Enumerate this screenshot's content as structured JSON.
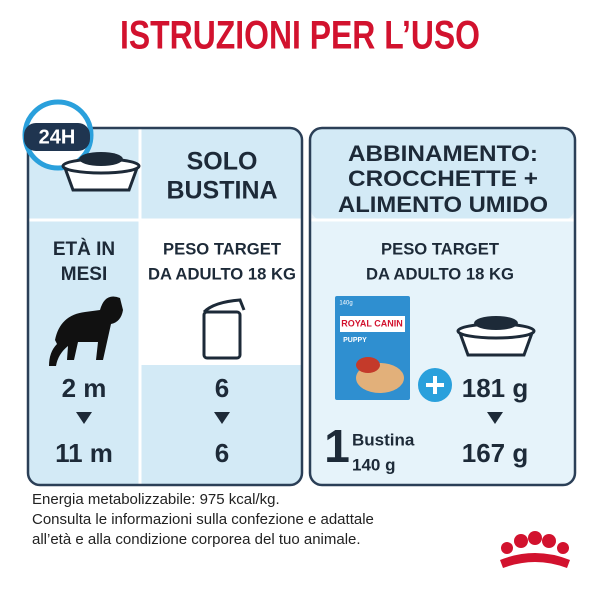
{
  "title": "ISTRUZIONI PER L’USO",
  "badge": "24H",
  "left_panel": {
    "header": [
      "SOLO",
      "BUSTINA"
    ],
    "age_header": [
      "ETÀ IN",
      "MESI"
    ],
    "weight_header": [
      "PESO TARGET",
      "DA ADULTO 18 KG"
    ],
    "rows": [
      [
        "2 m",
        "6"
      ],
      [
        "11 m",
        "6"
      ]
    ]
  },
  "right_panel": {
    "header": [
      "ABBINAMENTO:",
      "CROCCHETTE +",
      "ALIMENTO UMIDO"
    ],
    "weight_header": [
      "PESO TARGET",
      "DA ADULTO 18 KG"
    ],
    "pouch": {
      "size": "140g",
      "brand": "ROYAL CANIN",
      "product": "PUPPY"
    },
    "wet": {
      "count": "1",
      "unit": "Bustina",
      "amount": "140 g"
    },
    "dry": [
      "181 g",
      "167 g"
    ]
  },
  "footer": [
    "Energia metabolizzabile: 975 kcal/kg.",
    "Consulta le informazioni sulla confezione e adattale",
    "all’età e alla condizione corporea del tuo animale."
  ]
}
